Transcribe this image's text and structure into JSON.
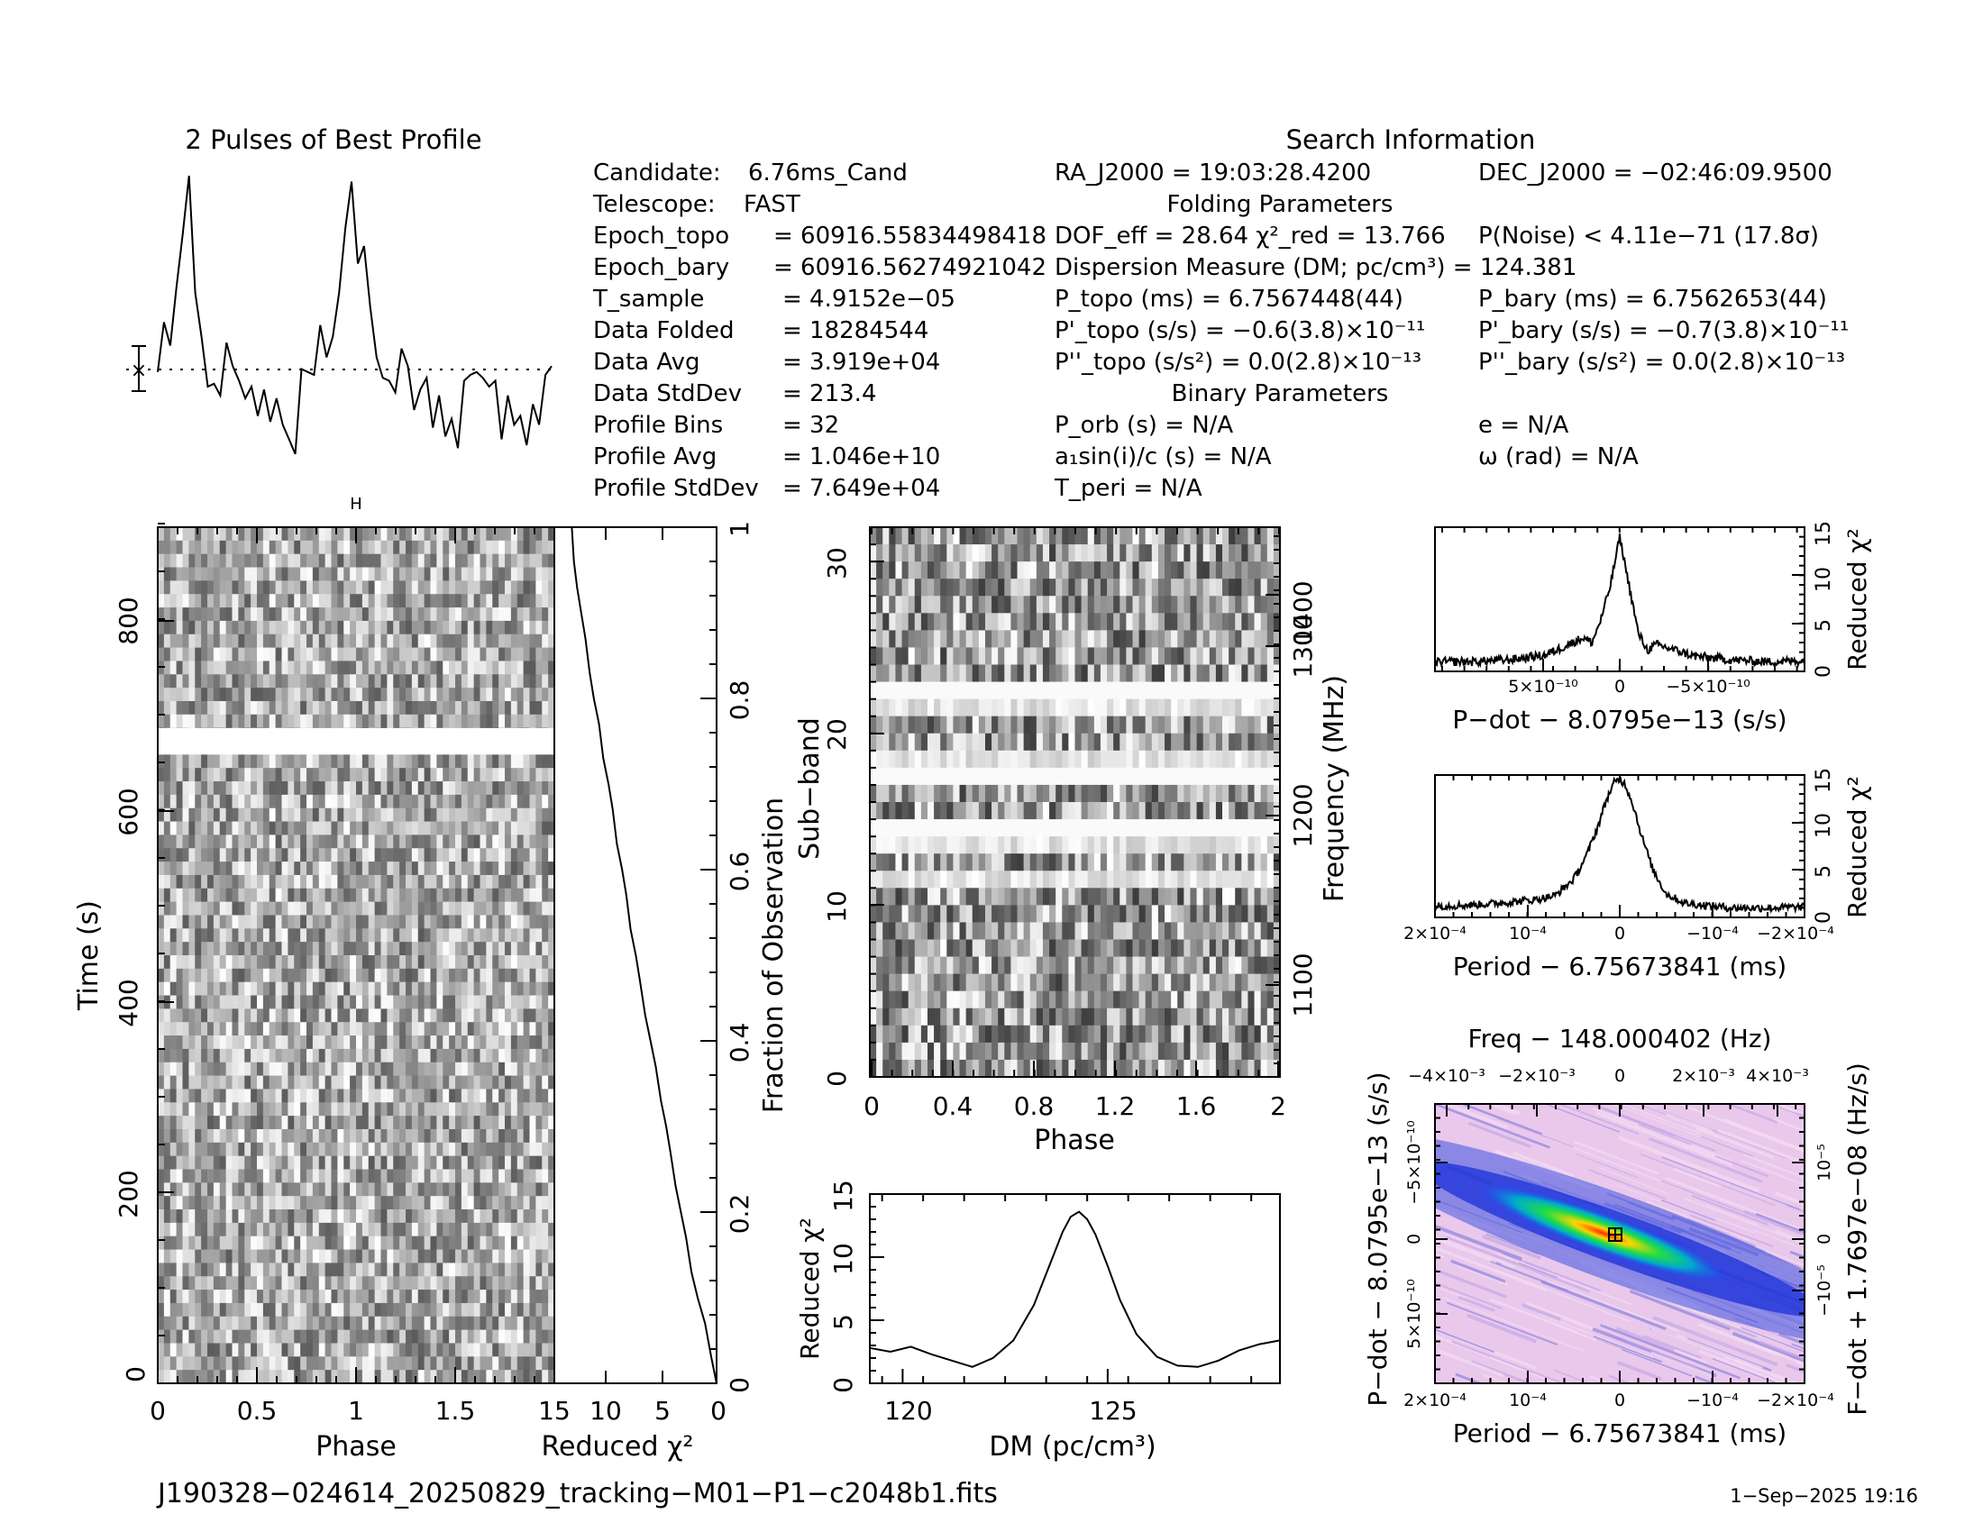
{
  "profile_title": "2 Pulses of Best Profile",
  "search_title": "Search Information",
  "candidate_info": [
    {
      "label": "Candidate:",
      "value": "6.76ms_Cand"
    },
    {
      "label": "Telescope:",
      "value": "FAST"
    },
    {
      "label": "Epoch_topo",
      "value": "= 60916.55834498418"
    },
    {
      "label": "Epoch_bary",
      "value": "= 60916.56274921042"
    },
    {
      "label": "T_sample",
      "value": "=  4.9152e−05"
    },
    {
      "label": "Data Folded",
      "value": "=  18284544"
    },
    {
      "label": "Data Avg",
      "value": "=  3.919e+04"
    },
    {
      "label": "Data StdDev",
      "value": "=  213.4"
    },
    {
      "label": "Profile Bins",
      "value": "=  32"
    },
    {
      "label": "Profile Avg",
      "value": "=  1.046e+10"
    },
    {
      "label": "Profile StdDev",
      "value": "=  7.649e+04"
    }
  ],
  "ra": "RA_J2000 = 19:03:28.4200",
  "dec": "DEC_J2000 = −02:46:09.9500",
  "folding_title": "Folding Parameters",
  "dof": "DOF_eff = 28.64  χ²_red = 13.766",
  "pnoise": "P(Noise) < 4.11e−71  (17.8σ)",
  "dm_line": "Dispersion Measure (DM; pc/cm³) = 124.381",
  "ptopo": "P_topo (ms) =  6.7567448(44)",
  "pbary": "P_bary (ms) =  6.7562653(44)",
  "pdtopo": "P'_topo (s/s) = −0.6(3.8)×10⁻¹¹",
  "pdbary": "P'_bary (s/s) = −0.7(3.8)×10⁻¹¹",
  "pddtopo": "P''_topo (s/s²) = 0.0(2.8)×10⁻¹³",
  "pddbary": "P''_bary (s/s²) = 0.0(2.8)×10⁻¹³",
  "binary_title": "Binary Parameters",
  "porb": "P_orb (s) = N/A",
  "ecc": "e = N/A",
  "asini": "a₁sin(i)/c (s) = N/A",
  "omega": "ω (rad) = N/A",
  "tperi": "T_peri = N/A",
  "footer_filename": "J190328−024614_20250829_tracking−M01−P1−c2048b1.fits",
  "footer_date": "1−Sep−2025 19:16",
  "chart_data": [
    {
      "type": "line",
      "title": "2 Pulses of Best Profile",
      "x": "phase (2 pulses)",
      "values": [
        0.33,
        0.5,
        0.42,
        0.62,
        0.8,
        1.0,
        0.6,
        0.45,
        0.28,
        0.29,
        0.25,
        0.43,
        0.35,
        0.3,
        0.24,
        0.28,
        0.18,
        0.27,
        0.16,
        0.24,
        0.15,
        0.1,
        0.05,
        0.34,
        0.33,
        0.32,
        0.49,
        0.38,
        0.45,
        0.6,
        0.82,
        0.98,
        0.7,
        0.76,
        0.55,
        0.38,
        0.31,
        0.3,
        0.26,
        0.41,
        0.35,
        0.2,
        0.27,
        0.31,
        0.14,
        0.25,
        0.11,
        0.17,
        0.07,
        0.3,
        0.32,
        0.33,
        0.31,
        0.28,
        0.3,
        0.1,
        0.25,
        0.15,
        0.18,
        0.08,
        0.22,
        0.15,
        0.32,
        0.35
      ]
    },
    {
      "type": "heatmap",
      "xlabel": "Phase",
      "ylabel": "Time (s)",
      "xlim": [
        0,
        2
      ],
      "ylim": [
        0,
        900
      ],
      "xticks": [
        "0",
        "0.5",
        "1",
        "1.5"
      ],
      "yticks": [
        "0",
        "200",
        "400",
        "600",
        "800"
      ]
    },
    {
      "type": "line",
      "xlabel": "Reduced χ²",
      "ylabel_right": "Fraction of Observation",
      "xticks": [
        "15",
        "10",
        "5",
        "0"
      ],
      "yticks": [
        "0",
        "0.2",
        "0.4",
        "0.6",
        "0.8",
        "1"
      ],
      "x": [
        0,
        0.5,
        1.1,
        1.8,
        2.4,
        2.9,
        3.4,
        3.9,
        4.4,
        4.8,
        5.3,
        5.8,
        6.3,
        6.8,
        7.3,
        7.7,
        8.2,
        8.6,
        9.0,
        9.5,
        9.9,
        10.3,
        10.8,
        11.2,
        11.7,
        12.1,
        12.5,
        12.9,
        13.3,
        13.6,
        13.8
      ],
      "y": [
        0,
        0.03,
        0.07,
        0.1,
        0.13,
        0.17,
        0.2,
        0.23,
        0.27,
        0.3,
        0.33,
        0.37,
        0.4,
        0.43,
        0.47,
        0.5,
        0.53,
        0.57,
        0.6,
        0.63,
        0.67,
        0.7,
        0.73,
        0.77,
        0.8,
        0.83,
        0.87,
        0.9,
        0.93,
        0.96,
        1.0
      ]
    },
    {
      "type": "heatmap",
      "xlabel": "Phase",
      "ylabel": "Sub−band",
      "ylabel_right": "Frequency (MHz)",
      "xlim": [
        0,
        2
      ],
      "ylim": [
        0,
        32
      ],
      "xticks": [
        "0",
        "0.4",
        "0.8",
        "1.2",
        "1.6",
        "2"
      ],
      "yticks": [
        "0",
        "10",
        "20",
        "30"
      ],
      "freq_ticks": [
        "1100",
        "1200",
        "1300",
        "1400"
      ]
    },
    {
      "type": "line",
      "xlabel": "DM (pc/cm³)",
      "ylabel": "Reduced χ²",
      "xlim": [
        119.2,
        129.2
      ],
      "ylim": [
        0,
        15
      ],
      "xticks": [
        "120",
        "125"
      ],
      "yticks": [
        "0",
        "5",
        "10",
        "15"
      ],
      "x": [
        119.2,
        119.7,
        120.2,
        120.7,
        121.2,
        121.7,
        122.2,
        122.7,
        123.2,
        123.6,
        123.9,
        124.1,
        124.3,
        124.5,
        124.7,
        125.0,
        125.3,
        125.7,
        126.2,
        126.7,
        127.2,
        127.7,
        128.2,
        128.7,
        129.2
      ],
      "y": [
        2.8,
        2.5,
        2.9,
        2.3,
        1.8,
        1.3,
        2.0,
        3.4,
        6.2,
        9.5,
        12.0,
        13.2,
        13.6,
        13.0,
        11.8,
        9.3,
        6.6,
        3.9,
        2.1,
        1.4,
        1.3,
        1.8,
        2.6,
        3.1,
        3.4
      ]
    },
    {
      "type": "line",
      "xlabel": "P−dot − 8.0795e−13 (s/s)",
      "ylabel_right": "Reduced χ²",
      "xticks": [
        "5×10⁻¹⁰",
        "0",
        "−5×10⁻¹⁰"
      ],
      "yticks": [
        "0",
        "5",
        "10",
        "15"
      ],
      "x": [
        -1.0,
        -0.8,
        -0.6,
        -0.4,
        -0.3,
        -0.2,
        -0.15,
        -0.1,
        -0.05,
        0.0,
        0.05,
        0.1,
        0.15,
        0.2,
        0.3,
        0.4,
        0.6,
        0.8,
        1.0
      ],
      "y": [
        1.0,
        1.0,
        1.2,
        1.7,
        2.6,
        3.5,
        3.0,
        5.5,
        9.0,
        14.0,
        9.0,
        4.0,
        2.2,
        2.8,
        2.2,
        1.6,
        1.2,
        1.0,
        1.1
      ]
    },
    {
      "type": "line",
      "xlabel": "Period − 6.75673841 (ms)",
      "ylabel_right": "Reduced χ²",
      "xticks": [
        "2×10⁻⁴",
        "10⁻⁴",
        "0",
        "−10⁻⁴",
        "−2×10⁻⁴"
      ],
      "yticks": [
        "0",
        "5",
        "10",
        "15"
      ],
      "x": [
        -1.0,
        -0.8,
        -0.6,
        -0.45,
        -0.35,
        -0.25,
        -0.18,
        -0.12,
        -0.07,
        -0.03,
        0.0,
        0.03,
        0.07,
        0.12,
        0.18,
        0.25,
        0.35,
        0.45,
        0.6,
        0.8,
        1.0
      ],
      "y": [
        1.2,
        1.3,
        1.6,
        1.9,
        2.3,
        4.0,
        6.5,
        9.5,
        12.5,
        14.2,
        14.5,
        14.0,
        12.0,
        8.5,
        5.0,
        2.5,
        1.5,
        1.3,
        1.0,
        1.0,
        1.1
      ]
    },
    {
      "type": "heatmap",
      "title": "Freq − 148.000402 (Hz)",
      "xlabel": "Period − 6.75673841 (ms)",
      "ylabel": "P−dot − 8.0795e−13 (s/s)",
      "ylabel_right": "F−dot + 1.7697e−08 (Hz/s)",
      "xticks_top": [
        "−4×10⁻³",
        "−2×10⁻³",
        "0",
        "2×10⁻³",
        "4×10⁻³"
      ],
      "xticks": [
        "2×10⁻⁴",
        "10⁻⁴",
        "0",
        "−10⁻⁴",
        "−2×10⁻⁴"
      ],
      "yticks": [
        "5×10⁻¹⁰",
        "0",
        "−5×10⁻¹⁰"
      ],
      "yticks_right": [
        "−10⁻⁵",
        "0",
        "10⁻⁵"
      ]
    }
  ]
}
